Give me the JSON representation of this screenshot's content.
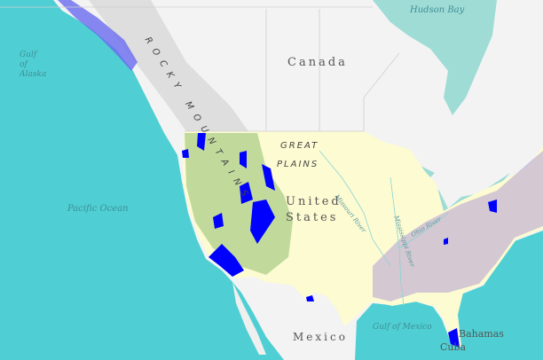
{
  "map": {
    "labels": {
      "hudson_bay": "Hudson Bay",
      "gulf_of_alaska": "Gulf of Alaska",
      "canada": "Canada",
      "rocky_mountains": "ROCKY MOUNTAINS",
      "great_plains_1": "GREAT",
      "great_plains_2": "PLAINS",
      "united": "United",
      "states": "States",
      "pacific_ocean": "Pacific Ocean",
      "missouri_river": "Missouri River",
      "mississippi_river": "Mississippi River",
      "ohio_river": "Ohio River",
      "gulf_of_mexico": "Gulf of Mexico",
      "mexico": "Mexico",
      "bahamas": "Bahamas",
      "cuba": "Cuba"
    },
    "colors": {
      "ocean": "#4fcfd3",
      "land": "#f4f4f4",
      "us_base": "#fdfbd2",
      "overlay_blue": "#0000ff",
      "overlay_green": "#6aa84f",
      "overlay_purple": "#9b86b8"
    }
  }
}
